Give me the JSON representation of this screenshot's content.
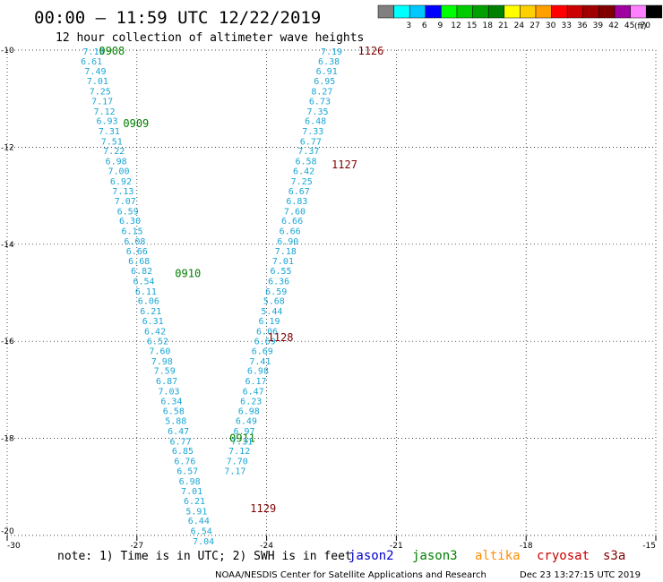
{
  "header": {
    "title": "00:00 – 11:59 UTC 12/22/2019",
    "subtitle": "12 hour collection of altimeter wave heights"
  },
  "color_scale": {
    "unit_label": "(ft)",
    "bins": [
      {
        "label": "",
        "color": "#808080"
      },
      {
        "label": "3",
        "color": "#00ffff"
      },
      {
        "label": "6",
        "color": "#00c8ff"
      },
      {
        "label": "9",
        "color": "#0000ff"
      },
      {
        "label": "12",
        "color": "#00ff00"
      },
      {
        "label": "15",
        "color": "#00cc00"
      },
      {
        "label": "18",
        "color": "#00a000"
      },
      {
        "label": "21",
        "color": "#008000"
      },
      {
        "label": "24",
        "color": "#ffff00"
      },
      {
        "label": "27",
        "color": "#ffd000"
      },
      {
        "label": "30",
        "color": "#ffa000"
      },
      {
        "label": "33",
        "color": "#ff0000"
      },
      {
        "label": "36",
        "color": "#cc0000"
      },
      {
        "label": "39",
        "color": "#a00000"
      },
      {
        "label": "42",
        "color": "#800000"
      },
      {
        "label": "45",
        "color": "#a000a0"
      },
      {
        "label": "70",
        "color": "#ff80ff"
      },
      {
        "label": "",
        "color": "#000000"
      }
    ]
  },
  "footer": {
    "note": "note: 1) Time is in UTC; 2) SWH is in feet",
    "credit": "NOAA/NESDIS Center for Satellite Applications and Research",
    "timestamp": "Dec 23 13:27:15 UTC 2019"
  },
  "colors": {
    "point_text": "#1aa7d6",
    "axis": "#000000",
    "grid": "#000000"
  },
  "chart_data": {
    "type": "scatter",
    "xlim": [
      -30,
      -15
    ],
    "ylim": [
      -20,
      -10
    ],
    "x_ticks": [
      "-30",
      "-27",
      "-24",
      "-21",
      "-18",
      "-15"
    ],
    "y_ticks": [
      "-10",
      "-12",
      "-14",
      "-16",
      "-18",
      "-20"
    ],
    "x_tick_values": [
      -30,
      -27,
      -24,
      -21,
      -18,
      -15
    ],
    "y_tick_values": [
      -10,
      -12,
      -14,
      -16,
      -18,
      -20
    ],
    "grid": "dotted",
    "legend": {
      "position": "bottom",
      "entries": [
        {
          "name": "jason2",
          "color": "#0000cc"
        },
        {
          "name": "jason3",
          "color": "#008000"
        },
        {
          "name": "altika",
          "color": "#ff8c00"
        },
        {
          "name": "cryosat",
          "color": "#cc0000"
        },
        {
          "name": "s3a",
          "color": "#800000"
        }
      ]
    },
    "series": [
      {
        "name": "jason3",
        "color": "#008000",
        "time_labels": [
          {
            "text": "0908",
            "x": -27.58,
            "y": -10.02
          },
          {
            "text": "0909",
            "x": -27.02,
            "y": -11.51
          },
          {
            "text": "0910",
            "x": -25.82,
            "y": -14.6
          },
          {
            "text": "0911",
            "x": -24.56,
            "y": -18.0
          }
        ],
        "points": [
          {
            "x": -28.0,
            "y": -10.02,
            "v": "7.19"
          },
          {
            "x": -28.05,
            "y": -10.22,
            "v": "6.61"
          },
          {
            "x": -27.96,
            "y": -10.42,
            "v": "7.49"
          },
          {
            "x": -27.91,
            "y": -10.63,
            "v": "7.01"
          },
          {
            "x": -27.85,
            "y": -10.84,
            "v": "7.25"
          },
          {
            "x": -27.8,
            "y": -11.04,
            "v": "7.17"
          },
          {
            "x": -27.75,
            "y": -11.25,
            "v": "7.12"
          },
          {
            "x": -27.69,
            "y": -11.45,
            "v": "6.93"
          },
          {
            "x": -27.64,
            "y": -11.66,
            "v": "7.31"
          },
          {
            "x": -27.58,
            "y": -11.87,
            "v": "7.51"
          },
          {
            "x": -27.53,
            "y": -12.07,
            "v": "7.22"
          },
          {
            "x": -27.48,
            "y": -12.28,
            "v": "6.98"
          },
          {
            "x": -27.42,
            "y": -12.48,
            "v": "7.00"
          },
          {
            "x": -27.37,
            "y": -12.69,
            "v": "6.92"
          },
          {
            "x": -27.32,
            "y": -12.9,
            "v": "7.13"
          },
          {
            "x": -27.27,
            "y": -13.1,
            "v": "7.07"
          },
          {
            "x": -27.21,
            "y": -13.31,
            "v": "6.59"
          },
          {
            "x": -27.16,
            "y": -13.51,
            "v": "6.30"
          },
          {
            "x": -27.11,
            "y": -13.72,
            "v": "6.15"
          },
          {
            "x": -27.05,
            "y": -13.93,
            "v": "6.08"
          },
          {
            "x": -27.0,
            "y": -14.13,
            "v": "6.66"
          },
          {
            "x": -26.95,
            "y": -14.34,
            "v": "6.68"
          },
          {
            "x": -26.89,
            "y": -14.54,
            "v": "6.82"
          },
          {
            "x": -26.84,
            "y": -14.75,
            "v": "6.54"
          },
          {
            "x": -26.79,
            "y": -14.96,
            "v": "6.11"
          },
          {
            "x": -26.73,
            "y": -15.16,
            "v": "6.06"
          },
          {
            "x": -26.68,
            "y": -15.37,
            "v": "6.21"
          },
          {
            "x": -26.63,
            "y": -15.57,
            "v": "6.31"
          },
          {
            "x": -26.58,
            "y": -15.78,
            "v": "6.42"
          },
          {
            "x": -26.52,
            "y": -15.99,
            "v": "6.52"
          },
          {
            "x": -26.47,
            "y": -16.19,
            "v": "7.60"
          },
          {
            "x": -26.42,
            "y": -16.4,
            "v": "7.98"
          },
          {
            "x": -26.36,
            "y": -16.6,
            "v": "7.59"
          },
          {
            "x": -26.31,
            "y": -16.81,
            "v": "6.87"
          },
          {
            "x": -26.26,
            "y": -17.02,
            "v": "7.03"
          },
          {
            "x": -26.2,
            "y": -17.22,
            "v": "6.34"
          },
          {
            "x": -26.15,
            "y": -17.43,
            "v": "6.58"
          },
          {
            "x": -26.1,
            "y": -17.63,
            "v": "5.88"
          },
          {
            "x": -26.04,
            "y": -17.84,
            "v": "6.47"
          },
          {
            "x": -25.99,
            "y": -18.05,
            "v": "6.77"
          },
          {
            "x": -25.94,
            "y": -18.25,
            "v": "6.85"
          },
          {
            "x": -25.89,
            "y": -18.46,
            "v": "6.76"
          },
          {
            "x": -25.83,
            "y": -18.66,
            "v": "6.57"
          },
          {
            "x": -25.78,
            "y": -18.87,
            "v": "6.98"
          },
          {
            "x": -25.73,
            "y": -19.08,
            "v": "7.01"
          },
          {
            "x": -25.67,
            "y": -19.28,
            "v": "6.21"
          },
          {
            "x": -25.62,
            "y": -19.49,
            "v": "5.91"
          },
          {
            "x": -25.57,
            "y": -19.69,
            "v": "6.44"
          },
          {
            "x": -25.51,
            "y": -19.9,
            "v": "6.54"
          },
          {
            "x": -25.46,
            "y": -20.11,
            "v": "7.04"
          }
        ]
      },
      {
        "name": "s3a",
        "color": "#800000",
        "time_labels": [
          {
            "text": "1126",
            "x": -21.59,
            "y": -10.02
          },
          {
            "text": "1127",
            "x": -22.2,
            "y": -12.36
          },
          {
            "text": "1128",
            "x": -23.68,
            "y": -15.92
          },
          {
            "text": "1129",
            "x": -24.08,
            "y": -19.45
          }
        ],
        "points": [
          {
            "x": -22.5,
            "y": -10.02,
            "v": "7.19"
          },
          {
            "x": -22.56,
            "y": -10.22,
            "v": "6.38"
          },
          {
            "x": -22.61,
            "y": -10.42,
            "v": "6.91"
          },
          {
            "x": -22.66,
            "y": -10.63,
            "v": "6.95"
          },
          {
            "x": -22.72,
            "y": -10.84,
            "v": "8.27"
          },
          {
            "x": -22.77,
            "y": -11.04,
            "v": "6.73"
          },
          {
            "x": -22.82,
            "y": -11.25,
            "v": "7.35"
          },
          {
            "x": -22.87,
            "y": -11.45,
            "v": "6.48"
          },
          {
            "x": -22.93,
            "y": -11.66,
            "v": "7.33"
          },
          {
            "x": -22.98,
            "y": -11.87,
            "v": "6.77"
          },
          {
            "x": -23.03,
            "y": -12.07,
            "v": "7.37"
          },
          {
            "x": -23.09,
            "y": -12.28,
            "v": "6.58"
          },
          {
            "x": -23.14,
            "y": -12.48,
            "v": "6.42"
          },
          {
            "x": -23.19,
            "y": -12.69,
            "v": "7.25"
          },
          {
            "x": -23.25,
            "y": -12.9,
            "v": "6.67"
          },
          {
            "x": -23.3,
            "y": -13.1,
            "v": "6.83"
          },
          {
            "x": -23.35,
            "y": -13.31,
            "v": "7.60"
          },
          {
            "x": -23.41,
            "y": -13.51,
            "v": "6.66"
          },
          {
            "x": -23.46,
            "y": -13.72,
            "v": "6.66"
          },
          {
            "x": -23.51,
            "y": -13.93,
            "v": "6.90"
          },
          {
            "x": -23.56,
            "y": -14.13,
            "v": "7.18"
          },
          {
            "x": -23.62,
            "y": -14.34,
            "v": "7.01"
          },
          {
            "x": -23.67,
            "y": -14.54,
            "v": "6.55"
          },
          {
            "x": -23.72,
            "y": -14.75,
            "v": "6.36"
          },
          {
            "x": -23.78,
            "y": -14.96,
            "v": "6.59"
          },
          {
            "x": -23.83,
            "y": -15.16,
            "v": "5.68"
          },
          {
            "x": -23.88,
            "y": -15.37,
            "v": "5.44"
          },
          {
            "x": -23.94,
            "y": -15.57,
            "v": "6.19"
          },
          {
            "x": -23.99,
            "y": -15.78,
            "v": "6.06"
          },
          {
            "x": -24.04,
            "y": -15.99,
            "v": "6.69"
          },
          {
            "x": -24.1,
            "y": -16.19,
            "v": "6.69"
          },
          {
            "x": -24.15,
            "y": -16.4,
            "v": "7.41"
          },
          {
            "x": -24.2,
            "y": -16.6,
            "v": "6.98"
          },
          {
            "x": -24.25,
            "y": -16.81,
            "v": "6.17"
          },
          {
            "x": -24.31,
            "y": -17.02,
            "v": "6.47"
          },
          {
            "x": -24.36,
            "y": -17.22,
            "v": "6.23"
          },
          {
            "x": -24.41,
            "y": -17.43,
            "v": "6.98"
          },
          {
            "x": -24.47,
            "y": -17.63,
            "v": "6.49"
          },
          {
            "x": -24.52,
            "y": -17.84,
            "v": "6.97"
          },
          {
            "x": -24.57,
            "y": -18.05,
            "v": "7.31"
          },
          {
            "x": -24.63,
            "y": -18.25,
            "v": "7.12"
          },
          {
            "x": -24.68,
            "y": -18.46,
            "v": "7.70"
          },
          {
            "x": -24.73,
            "y": -18.66,
            "v": "7.17"
          }
        ]
      }
    ]
  }
}
